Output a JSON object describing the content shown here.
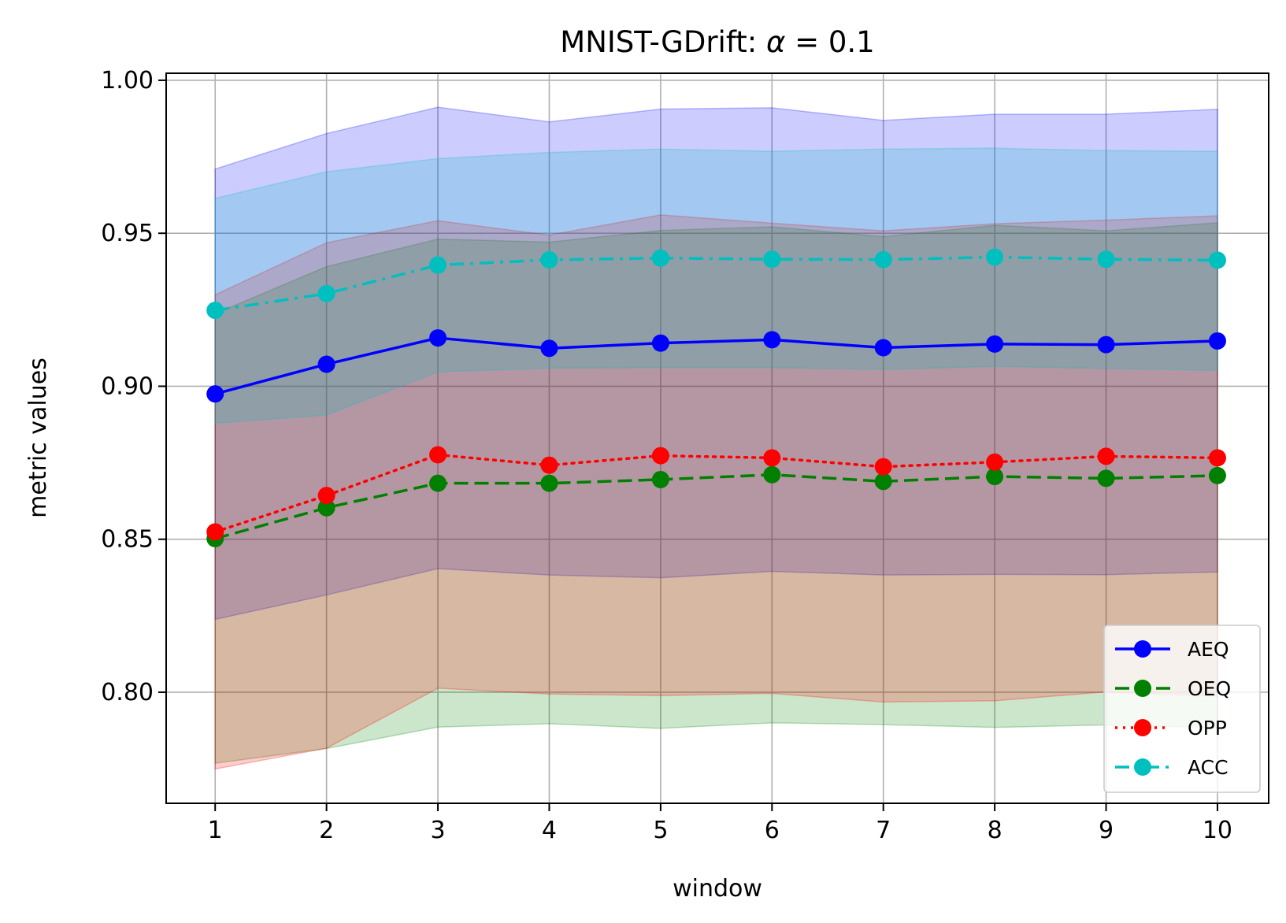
{
  "chart_data": {
    "type": "line",
    "title": "MNIST-GDrift: α = 0.1",
    "title_main": "MNIST-GDrift: ",
    "title_symbol": "α",
    "title_value": " = 0.1",
    "xlabel": "window",
    "ylabel": "metric values",
    "x": [
      1,
      2,
      3,
      4,
      5,
      6,
      7,
      8,
      9,
      10
    ],
    "x_tick_labels": [
      "1",
      "2",
      "3",
      "4",
      "5",
      "6",
      "7",
      "8",
      "9",
      "10"
    ],
    "xlim": [
      0.56,
      10.46
    ],
    "ylim": [
      0.7637,
      1.0023
    ],
    "y_ticks": [
      0.8,
      0.85,
      0.9,
      0.95,
      1.0
    ],
    "y_tick_labels": [
      "0.80",
      "0.85",
      "0.90",
      "0.95",
      "1.00"
    ],
    "grid": true,
    "legend_position": "lower-right",
    "series": [
      {
        "name": "AEQ",
        "color": "#0000ff",
        "line_style": "solid",
        "marker": "circle",
        "values": [
          0.8975,
          0.9072,
          0.9158,
          0.9124,
          0.9141,
          0.9152,
          0.9126,
          0.9138,
          0.9136,
          0.9148
        ],
        "band_lower": [
          0.8238,
          0.8318,
          0.8404,
          0.8383,
          0.8374,
          0.8395,
          0.8383,
          0.8385,
          0.8384,
          0.8393
        ],
        "band_upper": [
          0.971,
          0.9826,
          0.9912,
          0.9864,
          0.9906,
          0.991,
          0.9869,
          0.9889,
          0.9889,
          0.9905
        ]
      },
      {
        "name": "OEQ",
        "color": "#008000",
        "line_style": "dashed",
        "marker": "circle",
        "values": [
          0.8502,
          0.8603,
          0.8683,
          0.8683,
          0.8695,
          0.8711,
          0.8689,
          0.8705,
          0.8699,
          0.8708
        ],
        "band_lower": [
          0.7768,
          0.7816,
          0.7886,
          0.7897,
          0.7882,
          0.79,
          0.7894,
          0.7885,
          0.7893,
          0.7884
        ],
        "band_upper": [
          0.9237,
          0.9391,
          0.9481,
          0.9471,
          0.9509,
          0.9521,
          0.9489,
          0.9526,
          0.9508,
          0.9534
        ]
      },
      {
        "name": "OPP",
        "color": "#ff0000",
        "line_style": "dotted",
        "marker": "circle",
        "values": [
          0.8524,
          0.8643,
          0.8776,
          0.8742,
          0.8773,
          0.8766,
          0.8737,
          0.8752,
          0.8771,
          0.8766
        ],
        "band_lower": [
          0.7749,
          0.7817,
          0.8013,
          0.7994,
          0.7989,
          0.7996,
          0.7968,
          0.7972,
          0.8001,
          0.7987
        ],
        "band_upper": [
          0.9299,
          0.9469,
          0.9541,
          0.9494,
          0.956,
          0.9533,
          0.9508,
          0.9531,
          0.9543,
          0.9557
        ]
      },
      {
        "name": "ACC",
        "color": "#00bfbf",
        "line_style": "dashdot",
        "marker": "circle",
        "values": [
          0.9248,
          0.9303,
          0.9396,
          0.9413,
          0.9419,
          0.9415,
          0.9414,
          0.9422,
          0.9415,
          0.9412
        ],
        "band_lower": [
          0.8879,
          0.8906,
          0.9047,
          0.9059,
          0.9061,
          0.9061,
          0.9055,
          0.9065,
          0.9058,
          0.9052
        ],
        "band_upper": [
          0.9614,
          0.9701,
          0.9744,
          0.9764,
          0.9775,
          0.9768,
          0.9775,
          0.9778,
          0.977,
          0.9768
        ]
      }
    ]
  }
}
